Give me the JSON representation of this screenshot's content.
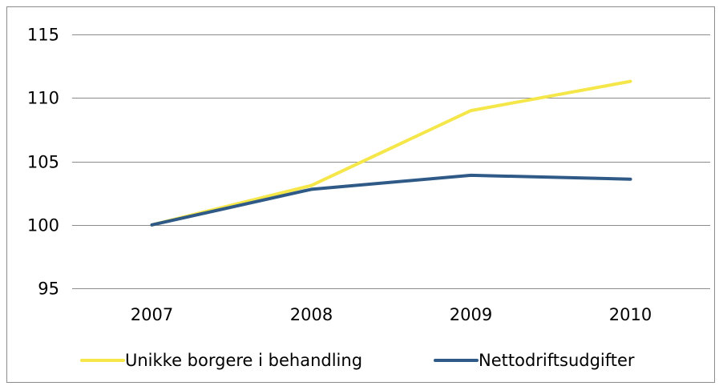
{
  "chart_data": {
    "type": "line",
    "title": "",
    "xlabel": "",
    "ylabel": "",
    "categories": [
      "2007",
      "2008",
      "2009",
      "2010"
    ],
    "ylim": [
      95,
      115
    ],
    "yticks": [
      95,
      100,
      105,
      110,
      115
    ],
    "grid": "horizontal",
    "legend_position": "bottom",
    "series": [
      {
        "name": "Unikke borgere i behandling",
        "color": "#f5e74a",
        "values": [
          100,
          103.1,
          109,
          111.3
        ]
      },
      {
        "name": "Nettodriftsudgifter",
        "color": "#2f5a87",
        "values": [
          100,
          102.8,
          103.9,
          103.6
        ]
      }
    ]
  }
}
